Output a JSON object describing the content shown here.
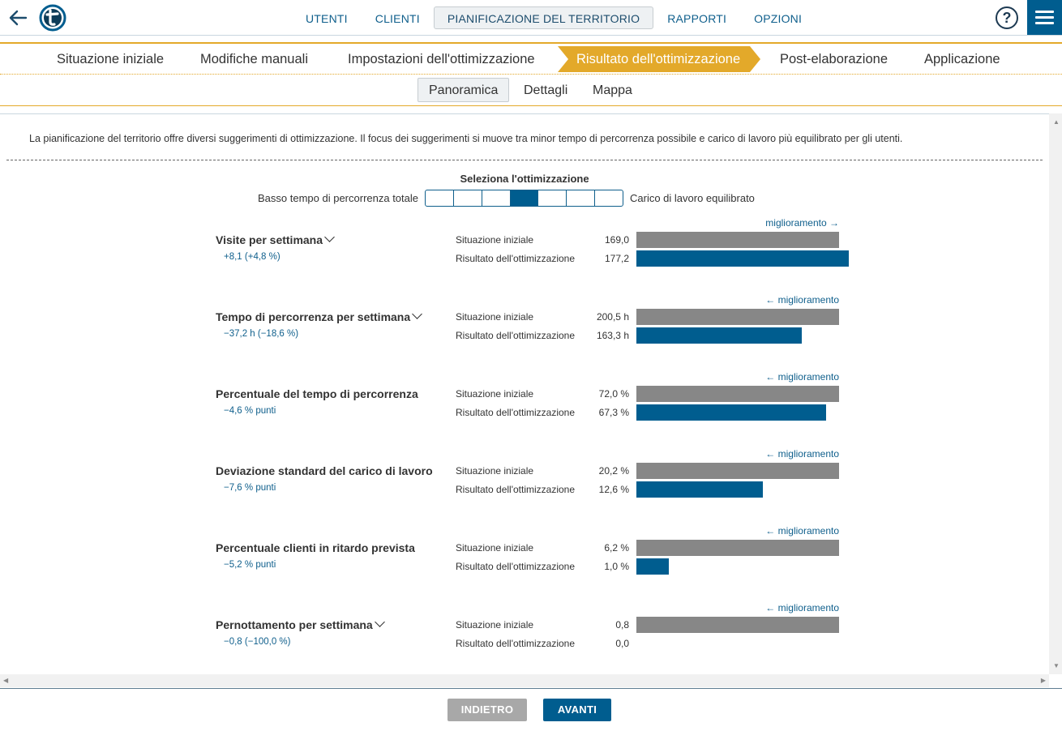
{
  "topbar": {
    "nav": [
      {
        "label": "UTENTI",
        "active": false
      },
      {
        "label": "CLIENTI",
        "active": false
      },
      {
        "label": "PIANIFICAZIONE DEL TERRITORIO",
        "active": true
      },
      {
        "label": "RAPPORTI",
        "active": false
      },
      {
        "label": "OPZIONI",
        "active": false
      }
    ],
    "help_label": "?",
    "icons": {
      "back": "arrow-left-icon",
      "logo": "app-logo",
      "help": "help-icon",
      "menu": "hamburger-menu-icon"
    }
  },
  "steps": [
    {
      "label": "Situazione iniziale"
    },
    {
      "label": "Modifiche manuali"
    },
    {
      "label": "Impostazioni dell'ottimizzazione"
    },
    {
      "label": "Risultato dell'ottimizzazione",
      "active": true
    },
    {
      "label": "Post-elaborazione"
    },
    {
      "label": "Applicazione"
    }
  ],
  "subtabs": [
    {
      "label": "Panoramica",
      "active": true
    },
    {
      "label": "Dettagli"
    },
    {
      "label": "Mappa"
    }
  ],
  "intro": "La pianificazione del territorio offre diversi suggerimenti di ottimizzazione. Il focus dei suggerimenti si muove tra minor tempo di percorrenza possibile e carico di lavoro più equilibrato per gli utenti.",
  "selector": {
    "title": "Seleziona l'ottimizzazione",
    "left_label": "Basso tempo di percorrenza totale",
    "right_label": "Carico di lavoro equilibrato",
    "segments": 7,
    "selected_index": 3
  },
  "row_labels": {
    "initial": "Situazione iniziale",
    "result": "Risultato dell'ottimizzazione"
  },
  "metrics": [
    {
      "title": "Visite per settimana",
      "has_dropdown": true,
      "improvement": "miglioramento →",
      "delta": "+8,1 (+4,8 %)",
      "initial_value": "169,0",
      "result_value": "177,2",
      "initial_fraction": 1.0,
      "result_fraction": 1.049
    },
    {
      "title": "Tempo di percorrenza per settimana",
      "has_dropdown": true,
      "improvement": "← miglioramento",
      "delta": "−37,2 h (−18,6 %)",
      "initial_value": "200,5 h",
      "result_value": "163,3 h",
      "initial_fraction": 1.0,
      "result_fraction": 0.814
    },
    {
      "title": "Percentuale del tempo di percorrenza",
      "has_dropdown": false,
      "improvement": "← miglioramento",
      "delta": "−4,6 % punti",
      "initial_value": "72,0 %",
      "result_value": "67,3 %",
      "initial_fraction": 1.0,
      "result_fraction": 0.935
    },
    {
      "title": "Deviazione standard del carico di lavoro",
      "has_dropdown": false,
      "improvement": "← miglioramento",
      "delta": "−7,6 % punti",
      "initial_value": "20,2 %",
      "result_value": "12,6 %",
      "initial_fraction": 1.0,
      "result_fraction": 0.624
    },
    {
      "title": "Percentuale clienti in ritardo prevista",
      "has_dropdown": false,
      "improvement": "← miglioramento",
      "delta": "−5,2 % punti",
      "initial_value": "6,2 %",
      "result_value": "1,0 %",
      "initial_fraction": 1.0,
      "result_fraction": 0.161
    },
    {
      "title": "Pernottamento per settimana",
      "has_dropdown": true,
      "improvement": "← miglioramento",
      "delta": "−0,8 (−100,0 %)",
      "initial_value": "0,8",
      "result_value": "0,0",
      "initial_fraction": 1.0,
      "result_fraction": 0.0
    }
  ],
  "footer": {
    "back_label": "INDIETRO",
    "next_label": "AVANTI"
  },
  "colors": {
    "accent": "#005d8f",
    "step_active": "#e3a92a",
    "bar_initial": "#878787",
    "bar_result": "#005d8f",
    "link": "#0f5f8c"
  }
}
